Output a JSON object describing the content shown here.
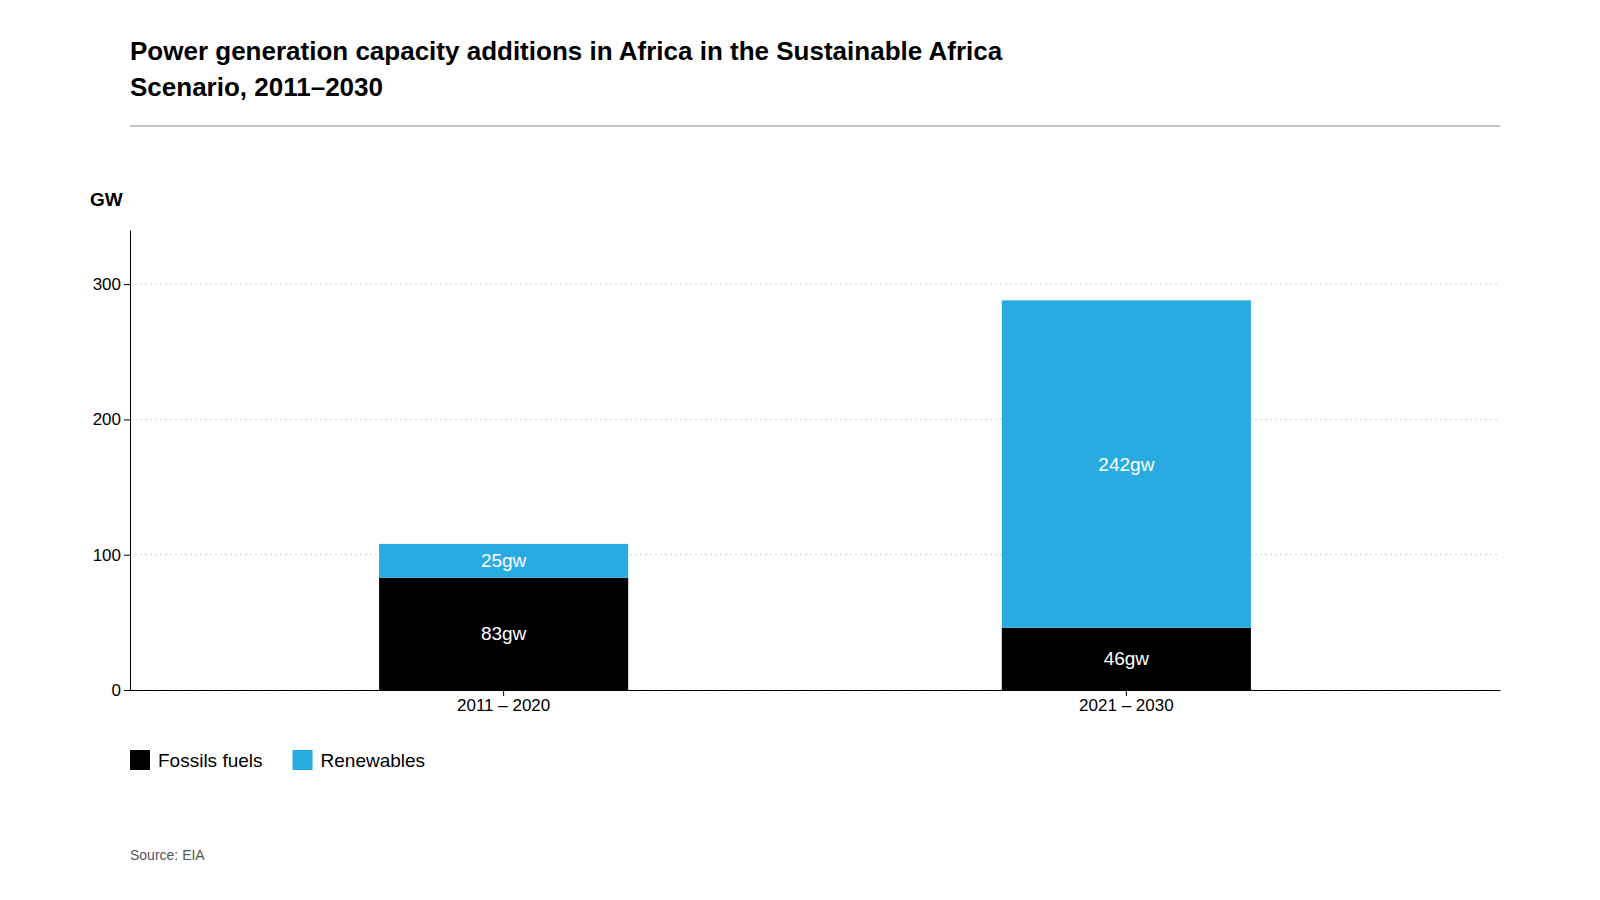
{
  "chart_data": {
    "type": "bar",
    "title": [
      "Power generation capacity additions in Africa in the Sustainable Africa",
      "Scenario, 2011–2030"
    ],
    "ylabel": "GW",
    "source": "Source: EIA",
    "categories": [
      "2011 – 2020",
      "2021 – 2030"
    ],
    "series": [
      {
        "name": "Fossils fuels",
        "color": "#000000",
        "values": [
          83,
          46
        ],
        "value_labels": [
          "83gw",
          "46gw"
        ]
      },
      {
        "name": "Renewables",
        "color": "#29ABE2",
        "values": [
          25,
          242
        ],
        "value_labels": [
          "25gw",
          "242gw"
        ]
      }
    ],
    "stacked": true,
    "data_labels": true,
    "ylim": [
      0,
      340
    ],
    "yticks": [
      0,
      100,
      200,
      300
    ],
    "grid": true,
    "legend": "bottom-left"
  }
}
